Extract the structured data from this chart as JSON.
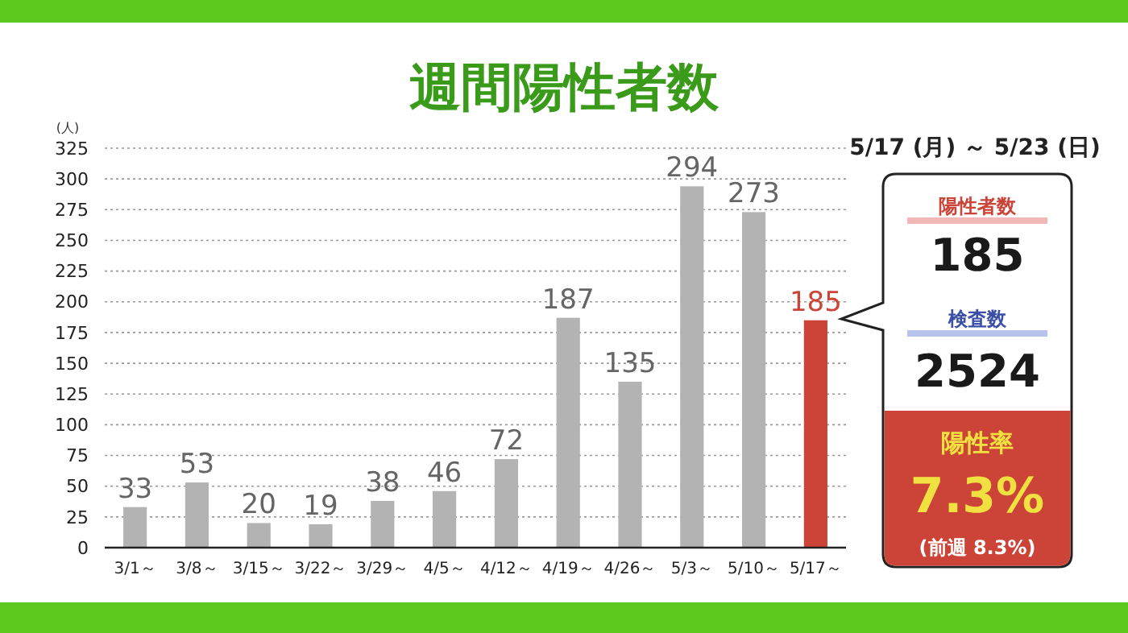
{
  "chart_data": [
    {
      "type": "bar",
      "title": "週間陽性者数",
      "ylabel": "(人)",
      "categories": [
        "3/1～",
        "3/8～",
        "3/15～",
        "3/22～",
        "3/29～",
        "4/5～",
        "4/12～",
        "4/19～",
        "4/26～",
        "5/3～",
        "5/10～",
        "5/17～"
      ],
      "values": [
        33,
        53,
        20,
        19,
        38,
        46,
        72,
        187,
        135,
        294,
        273,
        185
      ],
      "colors": [
        "#b3b3b3",
        "#b3b3b3",
        "#b3b3b3",
        "#b3b3b3",
        "#b3b3b3",
        "#b3b3b3",
        "#b3b3b3",
        "#b3b3b3",
        "#b3b3b3",
        "#b3b3b3",
        "#b3b3b3",
        "#cc4438"
      ],
      "ylim": [
        0,
        325
      ],
      "yticks": [
        0,
        25,
        50,
        75,
        100,
        125,
        150,
        175,
        200,
        225,
        250,
        275,
        300,
        325
      ],
      "grid": "y",
      "data_labels": true
    },
    {
      "type": "other",
      "annotations": [
        "5/17 (月) ～ 5/23 (日)",
        "陽性者数",
        "185",
        "検査数",
        "2524",
        "陽性率",
        "7.3%",
        "(前週 8.3%)"
      ]
    }
  ]
}
